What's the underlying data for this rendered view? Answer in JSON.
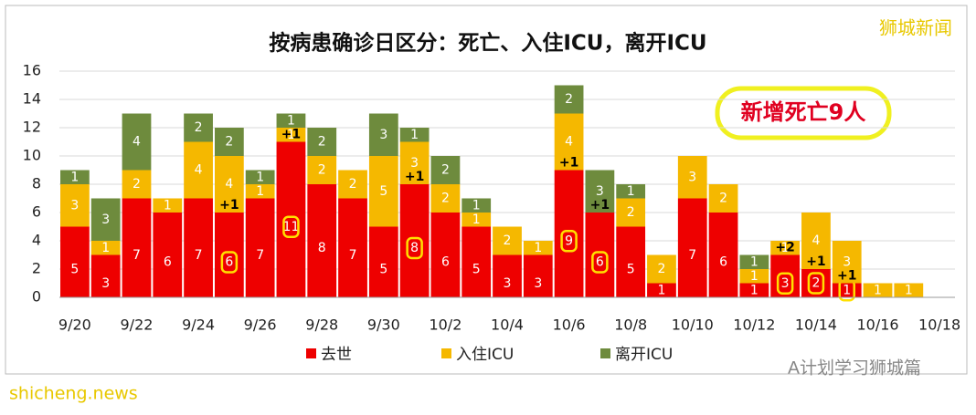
{
  "chart_data": {
    "type": "stacked_bar",
    "title": "按病患确诊日区分：死亡、入住ICU，离开ICU",
    "callout": "新增死亡9人",
    "watermarks": [
      "狮城新闻",
      "A计划学习狮城篇",
      "shicheng.news"
    ],
    "categories": [
      "9/20",
      null,
      "9/22",
      null,
      "9/24",
      null,
      "9/26",
      null,
      "9/28",
      null,
      "9/30",
      null,
      "10/2",
      null,
      "10/4",
      null,
      "10/6",
      null,
      "10/8",
      null,
      "10/10",
      null,
      "10/12",
      null,
      "10/14",
      null,
      "10/16",
      null,
      "10/18"
    ],
    "series": [
      {
        "name": "去世",
        "color": "#ee0000",
        "values": [
          5,
          3,
          7,
          6,
          7,
          6,
          7,
          11,
          8,
          7,
          5,
          8,
          6,
          5,
          3,
          3,
          9,
          6,
          5,
          1,
          7,
          6,
          1,
          3,
          2,
          1,
          0,
          0,
          null
        ]
      },
      {
        "name": "入住ICU",
        "color": "#f5b800",
        "values": [
          3,
          1,
          2,
          1,
          4,
          4,
          1,
          1,
          2,
          2,
          5,
          3,
          2,
          1,
          2,
          1,
          4,
          0,
          2,
          2,
          3,
          2,
          1,
          1,
          4,
          3,
          1,
          1,
          null
        ]
      },
      {
        "name": "离开ICU",
        "color": "#6e8b3d",
        "values": [
          1,
          3,
          4,
          0,
          2,
          2,
          1,
          1,
          2,
          0,
          3,
          1,
          2,
          1,
          0,
          0,
          2,
          3,
          1,
          0,
          0,
          0,
          1,
          0,
          0,
          0,
          0,
          0,
          null
        ]
      }
    ],
    "new_death_labels": [
      null,
      null,
      null,
      null,
      null,
      "+1",
      null,
      "+1",
      null,
      null,
      null,
      "+1",
      null,
      null,
      null,
      null,
      "+1",
      "+1",
      null,
      null,
      null,
      null,
      null,
      "+2",
      "+1",
      "+1",
      null,
      null,
      null
    ],
    "circled_series": 0,
    "circled": [
      5,
      7,
      11,
      16,
      17,
      23,
      24,
      25
    ],
    "ylim": [
      0,
      16
    ],
    "yticks": [
      0,
      2,
      4,
      6,
      8,
      10,
      12,
      14,
      16
    ],
    "grid": true
  }
}
